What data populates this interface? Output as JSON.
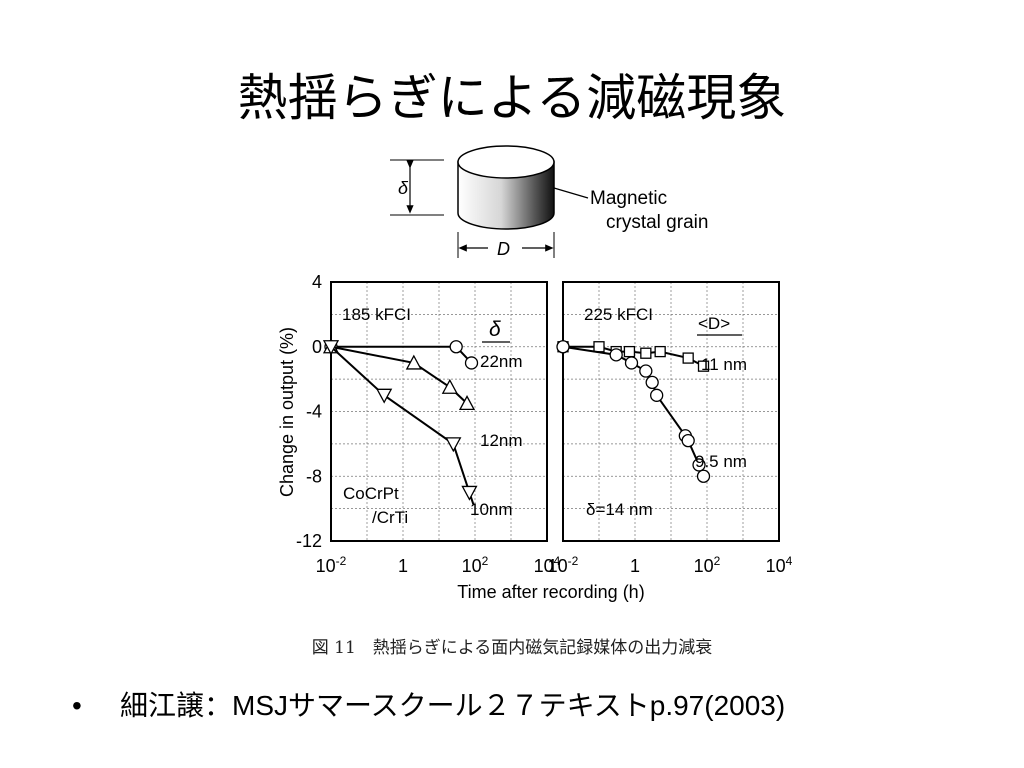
{
  "slide": {
    "title": "熱揺らぎによる減磁現象",
    "caption": "図 11　熱揺らぎによる面内磁気記録媒体の出力減衰",
    "bullet": "細江譲：MSJサマースクール２７テキストp.97(2003)",
    "bullet_symbol": "•"
  },
  "grain_diagram": {
    "label_line1": "Magnetic",
    "label_line2": "crystal grain",
    "height_symbol": "δ",
    "diameter_symbol": "D"
  },
  "chart_data": [
    {
      "type": "line",
      "panel": "left",
      "annotation_field": "185 kFCI",
      "annotation_material_1": "CoCrPt",
      "annotation_material_2": "/CrTi",
      "legend_heading": "δ",
      "xlabel": "Time after recording (h)",
      "ylabel": "Change in output (%)",
      "xscale": "log",
      "xlim": [
        0.01,
        10000
      ],
      "ylim": [
        -12,
        4
      ],
      "xticks": [
        "10-2",
        "1",
        "102",
        "104"
      ],
      "yticks": [
        "4",
        "0",
        "-4",
        "-8",
        "-12"
      ],
      "grid": true,
      "series": [
        {
          "name": "22nm",
          "marker": "circle",
          "x": [
            0.01,
            30,
            80
          ],
          "y": [
            0,
            0,
            -1
          ]
        },
        {
          "name": "12nm",
          "marker": "triangle-up",
          "x": [
            0.01,
            2,
            20,
            60
          ],
          "y": [
            0,
            -1,
            -2.5,
            -3.5
          ]
        },
        {
          "name": "10nm",
          "marker": "triangle-down",
          "x": [
            0.01,
            0.3,
            25,
            70
          ],
          "y": [
            0,
            -3,
            -6,
            -9
          ]
        }
      ]
    },
    {
      "type": "line",
      "panel": "right",
      "annotation_field": "225 kFCI",
      "legend_heading": "<D>",
      "delta_label": "δ=14 nm",
      "xscale": "log",
      "xlim": [
        0.01,
        10000
      ],
      "ylim": [
        -12,
        4
      ],
      "xticks": [
        "10-2",
        "1",
        "102",
        "104"
      ],
      "grid": true,
      "series": [
        {
          "name": "11 nm",
          "marker": "square",
          "x": [
            0.01,
            0.1,
            0.3,
            0.7,
            2,
            5,
            30,
            80
          ],
          "y": [
            0,
            0,
            -0.3,
            -0.3,
            -0.4,
            -0.3,
            -0.7,
            -1.2
          ]
        },
        {
          "name": "9.5 nm",
          "marker": "circle",
          "x": [
            0.01,
            0.3,
            0.8,
            2,
            3,
            4,
            25,
            30,
            60,
            80
          ],
          "y": [
            0,
            -0.5,
            -1,
            -1.5,
            -2.2,
            -3,
            -5.5,
            -5.8,
            -7.3,
            -8
          ]
        }
      ]
    }
  ]
}
